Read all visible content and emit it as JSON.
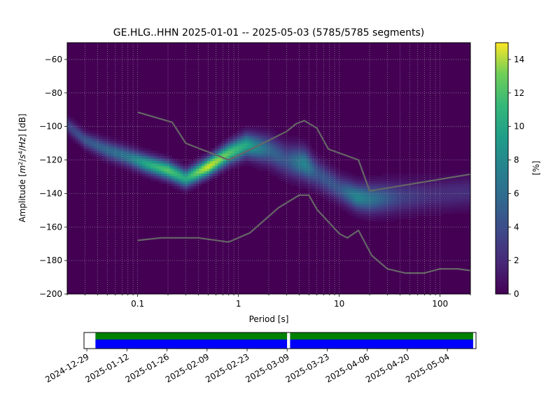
{
  "chart_data": [
    {
      "type": "heatmap",
      "title": "GE.HLG..HHN   2025-01-01 -- 2025-05-03  (5785/5785 segments)",
      "xlabel": "Period [s]",
      "ylabel_parts": [
        "Amplitude [",
        "m",
        "2",
        "/",
        "s",
        "4",
        "/",
        "Hz",
        "] [dB]"
      ],
      "x_scale": "log",
      "xlim": [
        0.02,
        200
      ],
      "ylim": [
        -200,
        -50
      ],
      "x_ticks": [
        0.1,
        1,
        10,
        100
      ],
      "x_tick_labels": [
        "0.1",
        "1",
        "10",
        "100"
      ],
      "y_ticks": [
        -200,
        -180,
        -160,
        -140,
        -120,
        -100,
        -80,
        -60
      ],
      "y_tick_labels": [
        "−200",
        "−180",
        "−160",
        "−140",
        "−120",
        "−100",
        "−80",
        "−60"
      ],
      "grid": true,
      "colormap": "viridis",
      "colorbar": {
        "label": "[%]",
        "range": [
          0,
          15
        ],
        "ticks": [
          0,
          2,
          4,
          6,
          8,
          10,
          12,
          14
        ],
        "tick_labels": [
          "0",
          "2",
          "4",
          "6",
          "8",
          "10",
          "12",
          "14"
        ]
      },
      "density_ridge": {
        "period": [
          0.02,
          0.03,
          0.05,
          0.08,
          0.12,
          0.2,
          0.3,
          0.5,
          0.8,
          1.2,
          2,
          3,
          4.5,
          6,
          10,
          15,
          20,
          40,
          80,
          200
        ],
        "center_db": [
          -99,
          -108,
          -114,
          -118,
          -122,
          -126,
          -131,
          -124,
          -116,
          -111,
          -114,
          -120,
          -122,
          -128,
          -137,
          -142,
          -143,
          -142,
          -141,
          -139
        ],
        "spread_db": [
          6,
          6,
          7,
          7,
          7,
          7,
          7,
          7,
          8,
          9,
          11,
          12,
          12,
          11,
          10,
          10,
          11,
          12,
          12,
          12
        ],
        "peak_percent": [
          3,
          4,
          5,
          6,
          9,
          11,
          9,
          14,
          11,
          9,
          5,
          4,
          7,
          4,
          4,
          7,
          6,
          3,
          2,
          2
        ]
      },
      "series": [
        {
          "type": "line",
          "color": "#666666",
          "x": [
            0.1,
            0.22,
            0.3,
            0.8,
            1.5,
            3.0,
            3.7,
            4.5,
            6.0,
            7.8,
            15.5,
            20,
            200
          ],
          "y": [
            -91.5,
            -97.5,
            -110,
            -120,
            -112,
            -103,
            -98.5,
            -96.5,
            -101,
            -113.5,
            -120,
            -138.5,
            -128.5
          ]
        },
        {
          "type": "line",
          "color": "#666666",
          "x": [
            0.1,
            0.17,
            0.4,
            0.8,
            1.3,
            2.5,
            4.0,
            5.0,
            6.0,
            10,
            12,
            15.5,
            21,
            30,
            45,
            70,
            100,
            150,
            200
          ],
          "y": [
            -168,
            -166.5,
            -166.5,
            -169,
            -163.5,
            -148.5,
            -141,
            -141,
            -149.5,
            -164,
            -166.5,
            -162,
            -177,
            -185,
            -187.5,
            -187.5,
            -185,
            -185,
            -186
          ]
        }
      ]
    },
    {
      "type": "timeline",
      "xlim": [
        "2024-12-28",
        "2025-05-14"
      ],
      "x_tick_labels": [
        "2024-12-29",
        "2025-01-12",
        "2025-01-26",
        "2025-02-09",
        "2025-02-23",
        "2025-03-09",
        "2025-03-23",
        "2025-04-06",
        "2025-04-20",
        "2025-05-04"
      ],
      "available_color": "#008000",
      "used_color": "#0000ff",
      "gap_color": "#ffffff",
      "data_start": "2025-01-01",
      "data_end": "2025-05-13",
      "gaps": [
        {
          "start": "2025-03-09",
          "end": "2025-03-10"
        }
      ]
    }
  ]
}
